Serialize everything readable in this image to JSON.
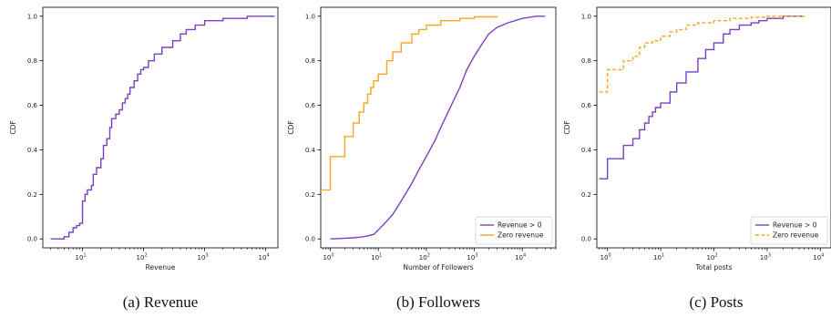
{
  "colors": {
    "revenue_pos": "#7b3fc4",
    "zero_revenue": "#f5a623",
    "axis": "#000000"
  },
  "chart_data": [
    {
      "type": "line",
      "caption": "(a) Revenue",
      "xlabel": "Revenue",
      "ylabel": "CDF",
      "xscale": "log",
      "xlim_log10": [
        0.35,
        4.2
      ],
      "ylim": [
        -0.04,
        1.04
      ],
      "x_ticks": [
        {
          "base": "10",
          "exp": "1",
          "log": 1
        },
        {
          "base": "10",
          "exp": "2",
          "log": 2
        },
        {
          "base": "10",
          "exp": "3",
          "log": 3
        },
        {
          "base": "10",
          "exp": "4",
          "log": 4
        }
      ],
      "y_ticks": [
        "0.0",
        "0.2",
        "0.4",
        "0.6",
        "0.8",
        "1.0"
      ],
      "legend": [],
      "series": [
        {
          "name": "",
          "color": "#7b3fc4",
          "dashed": false,
          "step": true,
          "points": [
            [
              3,
              0.0
            ],
            [
              5,
              0.01
            ],
            [
              6,
              0.03
            ],
            [
              7,
              0.05
            ],
            [
              8,
              0.06
            ],
            [
              9,
              0.07
            ],
            [
              10,
              0.09
            ],
            [
              10,
              0.17
            ],
            [
              11,
              0.2
            ],
            [
              12,
              0.22
            ],
            [
              14,
              0.24
            ],
            [
              15,
              0.29
            ],
            [
              17,
              0.32
            ],
            [
              20,
              0.36
            ],
            [
              22,
              0.42
            ],
            [
              25,
              0.45
            ],
            [
              28,
              0.5
            ],
            [
              30,
              0.54
            ],
            [
              35,
              0.56
            ],
            [
              40,
              0.58
            ],
            [
              45,
              0.61
            ],
            [
              50,
              0.63
            ],
            [
              55,
              0.65
            ],
            [
              60,
              0.68
            ],
            [
              70,
              0.71
            ],
            [
              80,
              0.74
            ],
            [
              90,
              0.76
            ],
            [
              100,
              0.77
            ],
            [
              120,
              0.8
            ],
            [
              150,
              0.83
            ],
            [
              200,
              0.86
            ],
            [
              300,
              0.89
            ],
            [
              400,
              0.92
            ],
            [
              500,
              0.94
            ],
            [
              700,
              0.96
            ],
            [
              1000,
              0.98
            ],
            [
              2000,
              0.99
            ],
            [
              5000,
              1.0
            ],
            [
              14000,
              1.0
            ]
          ]
        }
      ]
    },
    {
      "type": "line",
      "caption": "(b) Followers",
      "xlabel": "Number of Followers",
      "ylabel": "CDF",
      "xscale": "log",
      "xlim_log10": [
        -0.2,
        4.7
      ],
      "ylim": [
        -0.04,
        1.04
      ],
      "x_ticks": [
        {
          "base": "10",
          "exp": "0",
          "log": 0
        },
        {
          "base": "10",
          "exp": "1",
          "log": 1
        },
        {
          "base": "10",
          "exp": "2",
          "log": 2
        },
        {
          "base": "10",
          "exp": "3",
          "log": 3
        },
        {
          "base": "10",
          "exp": "4",
          "log": 4
        }
      ],
      "y_ticks": [
        "0.0",
        "0.2",
        "0.4",
        "0.6",
        "0.8",
        "1.0"
      ],
      "legend": [
        "Revenue  > 0",
        "Zero revenue"
      ],
      "series": [
        {
          "name": "Revenue  > 0",
          "color": "#7b3fc4",
          "dashed": false,
          "step": false,
          "points": [
            [
              1,
              0.0
            ],
            [
              3,
              0.005
            ],
            [
              5,
              0.01
            ],
            [
              8,
              0.02
            ],
            [
              10,
              0.04
            ],
            [
              15,
              0.08
            ],
            [
              20,
              0.11
            ],
            [
              30,
              0.17
            ],
            [
              50,
              0.25
            ],
            [
              70,
              0.31
            ],
            [
              100,
              0.37
            ],
            [
              150,
              0.44
            ],
            [
              200,
              0.5
            ],
            [
              300,
              0.58
            ],
            [
              500,
              0.68
            ],
            [
              700,
              0.76
            ],
            [
              1000,
              0.82
            ],
            [
              1500,
              0.88
            ],
            [
              2000,
              0.92
            ],
            [
              3000,
              0.95
            ],
            [
              5000,
              0.97
            ],
            [
              10000,
              0.99
            ],
            [
              20000,
              1.0
            ],
            [
              30000,
              1.0
            ]
          ]
        },
        {
          "name": "Zero revenue",
          "color": "#f5a623",
          "dashed": false,
          "step": true,
          "points": [
            [
              0.6,
              0.22
            ],
            [
              1,
              0.37
            ],
            [
              2,
              0.46
            ],
            [
              3,
              0.52
            ],
            [
              4,
              0.57
            ],
            [
              5,
              0.61
            ],
            [
              6,
              0.65
            ],
            [
              7,
              0.68
            ],
            [
              8,
              0.71
            ],
            [
              10,
              0.74
            ],
            [
              15,
              0.8
            ],
            [
              20,
              0.84
            ],
            [
              30,
              0.88
            ],
            [
              50,
              0.92
            ],
            [
              70,
              0.94
            ],
            [
              100,
              0.96
            ],
            [
              200,
              0.98
            ],
            [
              500,
              0.99
            ],
            [
              1000,
              0.997
            ],
            [
              3000,
              1.0
            ]
          ]
        }
      ]
    },
    {
      "type": "line",
      "caption": "(c) Posts",
      "xlabel": "Total posts",
      "ylabel": "CDF",
      "xscale": "log",
      "xlim_log10": [
        -0.2,
        4.2
      ],
      "ylim": [
        -0.04,
        1.04
      ],
      "x_ticks": [
        {
          "base": "10",
          "exp": "0",
          "log": 0
        },
        {
          "base": "10",
          "exp": "1",
          "log": 1
        },
        {
          "base": "10",
          "exp": "2",
          "log": 2
        },
        {
          "base": "10",
          "exp": "3",
          "log": 3
        },
        {
          "base": "10",
          "exp": "4",
          "log": 4
        }
      ],
      "y_ticks": [
        "0.0",
        "0.2",
        "0.4",
        "0.6",
        "0.8",
        "1.0"
      ],
      "legend": [
        "Revenue  > 0",
        "Zero revenue"
      ],
      "series": [
        {
          "name": "Revenue  > 0",
          "color": "#7b3fc4",
          "dashed": false,
          "step": true,
          "points": [
            [
              0.7,
              0.27
            ],
            [
              1,
              0.36
            ],
            [
              2,
              0.42
            ],
            [
              3,
              0.45
            ],
            [
              4,
              0.49
            ],
            [
              5,
              0.52
            ],
            [
              6,
              0.55
            ],
            [
              7,
              0.57
            ],
            [
              8,
              0.59
            ],
            [
              10,
              0.61
            ],
            [
              15,
              0.66
            ],
            [
              20,
              0.7
            ],
            [
              30,
              0.75
            ],
            [
              50,
              0.81
            ],
            [
              70,
              0.85
            ],
            [
              100,
              0.88
            ],
            [
              150,
              0.92
            ],
            [
              200,
              0.94
            ],
            [
              300,
              0.96
            ],
            [
              500,
              0.97
            ],
            [
              700,
              0.98
            ],
            [
              1000,
              0.99
            ],
            [
              2000,
              1.0
            ],
            [
              5000,
              1.0
            ]
          ]
        },
        {
          "name": "Zero revenue",
          "color": "#f5a623",
          "dashed": true,
          "step": true,
          "points": [
            [
              0.7,
              0.66
            ],
            [
              1,
              0.76
            ],
            [
              2,
              0.8
            ],
            [
              3,
              0.82
            ],
            [
              4,
              0.86
            ],
            [
              5,
              0.88
            ],
            [
              7,
              0.89
            ],
            [
              10,
              0.91
            ],
            [
              15,
              0.93
            ],
            [
              20,
              0.94
            ],
            [
              30,
              0.96
            ],
            [
              50,
              0.97
            ],
            [
              100,
              0.98
            ],
            [
              200,
              0.99
            ],
            [
              500,
              0.995
            ],
            [
              1000,
              1.0
            ],
            [
              5000,
              1.0
            ]
          ]
        }
      ]
    }
  ]
}
